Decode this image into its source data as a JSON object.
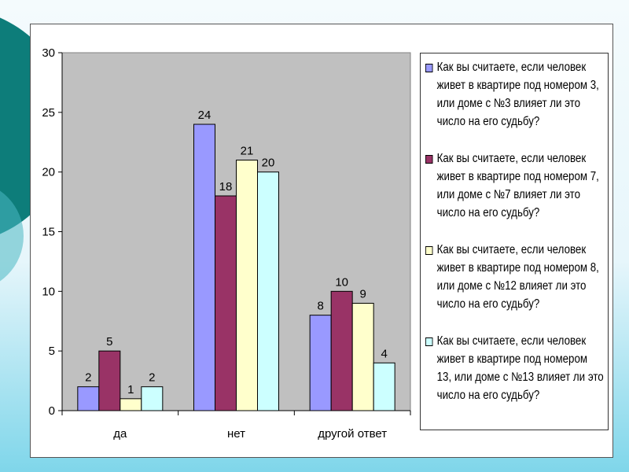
{
  "chart_data": {
    "type": "bar",
    "title": "",
    "xlabel": "",
    "ylabel": "",
    "categories": [
      "да",
      "нет",
      "другой ответ"
    ],
    "ylim": [
      0,
      30
    ],
    "yticks": [
      "0",
      "5",
      "10",
      "15",
      "20",
      "25",
      "30"
    ],
    "grid": false,
    "legend_position": "right",
    "data_labels": true,
    "series": [
      {
        "name": "Как вы считаете, если человек живет в квартире под номером 3, или доме с №3 влияет ли это число на его судьбу?",
        "values": [
          2,
          24,
          8
        ],
        "color": "#9999ff"
      },
      {
        "name": "Как вы считаете, если человек живет в квартире под номером 7, или доме с №7 влияет ли это число на его судьбу?",
        "values": [
          5,
          18,
          10
        ],
        "color": "#993366"
      },
      {
        "name": "Как вы считаете, если человек живет в квартире под номером 8, или доме с №12 влияет ли это число на его судьбу?",
        "values": [
          1,
          21,
          9
        ],
        "color": "#ffffcc"
      },
      {
        "name": "Как вы считаете, если человек живет в квартире под номером 13, или доме с №13 влияет ли это число на его судьбу?",
        "values": [
          2,
          20,
          4
        ],
        "color": "#ccffff"
      }
    ],
    "colors": {
      "plot_area": "#c0c0c0",
      "background": "#ffffff"
    }
  }
}
